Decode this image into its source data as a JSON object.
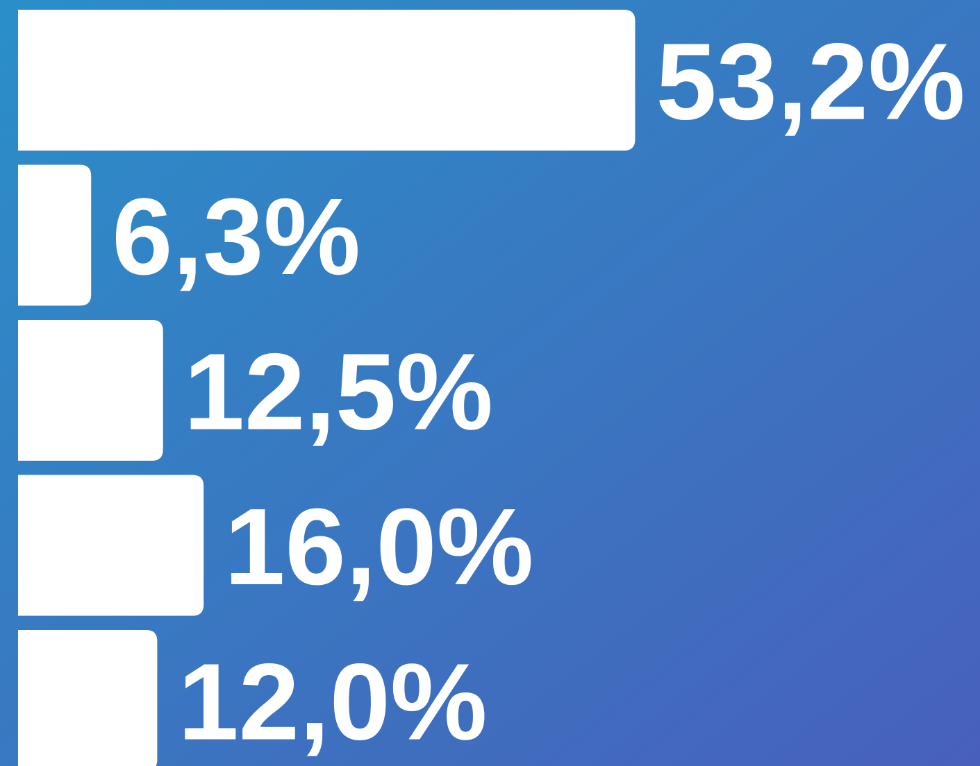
{
  "chart_data": {
    "type": "bar",
    "orientation": "horizontal",
    "values": [
      53.2,
      6.3,
      12.5,
      16.0,
      12.0
    ],
    "value_labels": [
      "53,2%",
      "6,3%",
      "12,5%",
      "16,0%",
      "12,0%"
    ],
    "color": "#ffffff"
  }
}
